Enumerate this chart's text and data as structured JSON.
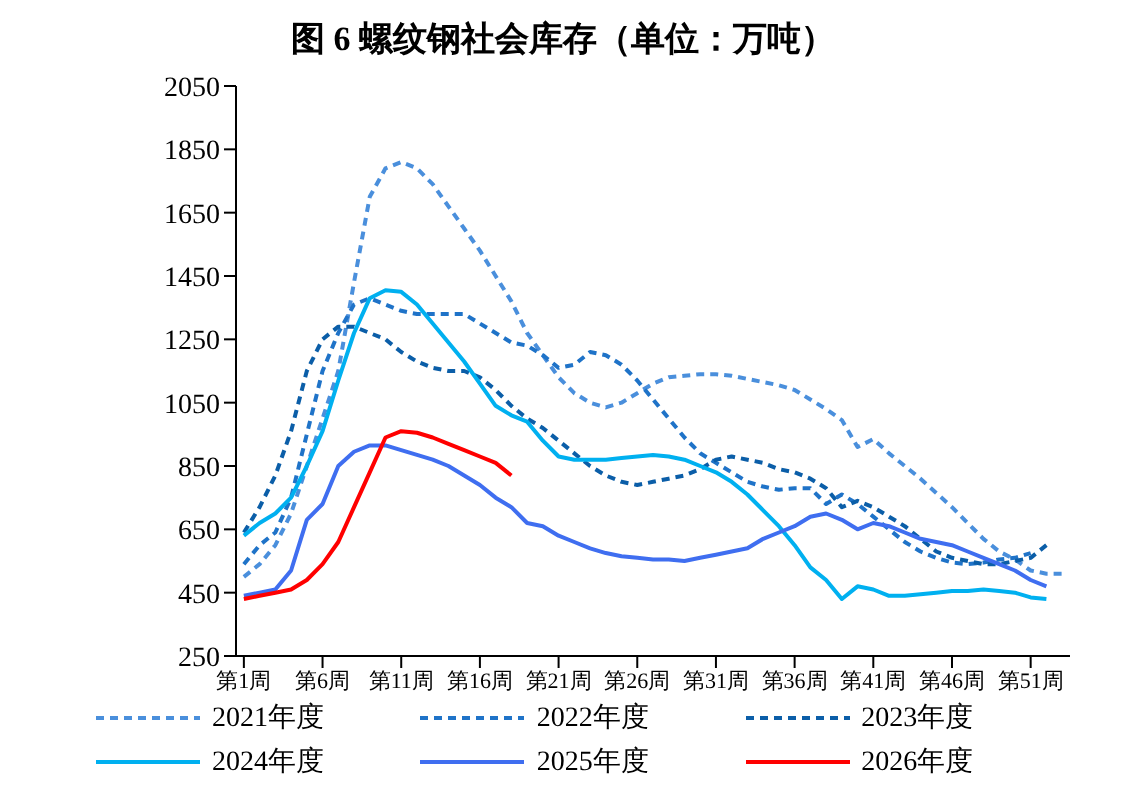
{
  "chart_data": {
    "type": "line",
    "title": "图 6 螺纹钢社会库存（单位：万吨）",
    "categories": [
      "第1周",
      null,
      null,
      null,
      null,
      "第6周",
      null,
      null,
      null,
      null,
      "第11周",
      null,
      null,
      null,
      null,
      "第16周",
      null,
      null,
      null,
      null,
      "第21周",
      null,
      null,
      null,
      null,
      "第26周",
      null,
      null,
      null,
      null,
      "第31周",
      null,
      null,
      null,
      null,
      "第36周",
      null,
      null,
      null,
      null,
      "第41周",
      null,
      null,
      null,
      null,
      "第46周",
      null,
      null,
      null,
      null,
      "第51周",
      null,
      null
    ],
    "ylim": [
      250,
      2050
    ],
    "yticks": [
      250,
      450,
      650,
      850,
      1050,
      1250,
      1450,
      1650,
      1850,
      2050
    ],
    "grid": false,
    "legend": "bottom",
    "marker": "none",
    "series": [
      {
        "name": "2021年度",
        "color": "#4a8fdc",
        "line_style": "dashed",
        "values": [
          500,
          540,
          600,
          700,
          850,
          1000,
          1150,
          1430,
          1700,
          1790,
          1810,
          1790,
          1740,
          1670,
          1600,
          1530,
          1450,
          1370,
          1270,
          1200,
          1130,
          1080,
          1050,
          1035,
          1050,
          1080,
          1110,
          1130,
          1135,
          1140,
          1140,
          1135,
          1125,
          1115,
          1105,
          1090,
          1060,
          1030,
          995,
          910,
          935,
          890,
          850,
          810,
          765,
          720,
          670,
          620,
          580,
          555,
          520,
          510,
          510
        ]
      },
      {
        "name": "2022年度",
        "color": "#1f73c8",
        "line_style": "dashed",
        "values": [
          540,
          600,
          640,
          750,
          950,
          1150,
          1270,
          1360,
          1380,
          1360,
          1340,
          1330,
          1330,
          1330,
          1330,
          1300,
          1270,
          1240,
          1230,
          1200,
          1160,
          1170,
          1210,
          1200,
          1170,
          1120,
          1060,
          1000,
          940,
          890,
          860,
          830,
          800,
          785,
          775,
          780,
          780,
          730,
          760,
          730,
          690,
          650,
          610,
          580,
          560,
          545,
          540,
          545,
          555,
          560,
          575,
          null,
          null
        ]
      },
      {
        "name": "2023年度",
        "color": "#0b5ea8",
        "line_style": "dashed",
        "values": [
          640,
          720,
          820,
          960,
          1150,
          1250,
          1290,
          1290,
          1270,
          1250,
          1210,
          1180,
          1160,
          1150,
          1150,
          1130,
          1090,
          1040,
          1000,
          970,
          930,
          890,
          850,
          820,
          800,
          790,
          800,
          810,
          820,
          840,
          870,
          880,
          870,
          860,
          840,
          830,
          810,
          780,
          720,
          740,
          720,
          690,
          660,
          620,
          580,
          560,
          550,
          540,
          540,
          550,
          560,
          600,
          null
        ]
      },
      {
        "name": "2024年度",
        "color": "#00b0f0",
        "line_style": "solid",
        "values": [
          630,
          670,
          700,
          750,
          850,
          960,
          1120,
          1270,
          1380,
          1405,
          1400,
          1360,
          1300,
          1240,
          1180,
          1110,
          1040,
          1010,
          990,
          930,
          880,
          870,
          870,
          870,
          875,
          880,
          885,
          880,
          870,
          850,
          830,
          800,
          760,
          710,
          660,
          600,
          530,
          490,
          430,
          470,
          460,
          440,
          440,
          445,
          450,
          455,
          455,
          460,
          455,
          450,
          435,
          430,
          null
        ]
      },
      {
        "name": "2025年度",
        "color": "#3f6ef0",
        "line_style": "solid",
        "values": [
          440,
          450,
          460,
          520,
          680,
          730,
          850,
          895,
          915,
          915,
          900,
          885,
          870,
          850,
          820,
          790,
          750,
          720,
          670,
          660,
          630,
          610,
          590,
          575,
          565,
          560,
          555,
          555,
          550,
          560,
          570,
          580,
          590,
          620,
          640,
          660,
          690,
          700,
          680,
          650,
          670,
          660,
          640,
          620,
          610,
          600,
          580,
          560,
          540,
          520,
          490,
          470,
          null
        ]
      },
      {
        "name": "2026年度",
        "color": "#ff0000",
        "line_style": "solid",
        "values": [
          430,
          440,
          450,
          460,
          490,
          540,
          610,
          720,
          830,
          940,
          960,
          955,
          940,
          920,
          900,
          880,
          860,
          820,
          null,
          null,
          null,
          null,
          null,
          null,
          null,
          null,
          null,
          null,
          null,
          null,
          null,
          null,
          null,
          null,
          null,
          null,
          null,
          null,
          null,
          null,
          null,
          null,
          null,
          null,
          null,
          null,
          null,
          null,
          null,
          null,
          null,
          null,
          null
        ]
      }
    ]
  }
}
